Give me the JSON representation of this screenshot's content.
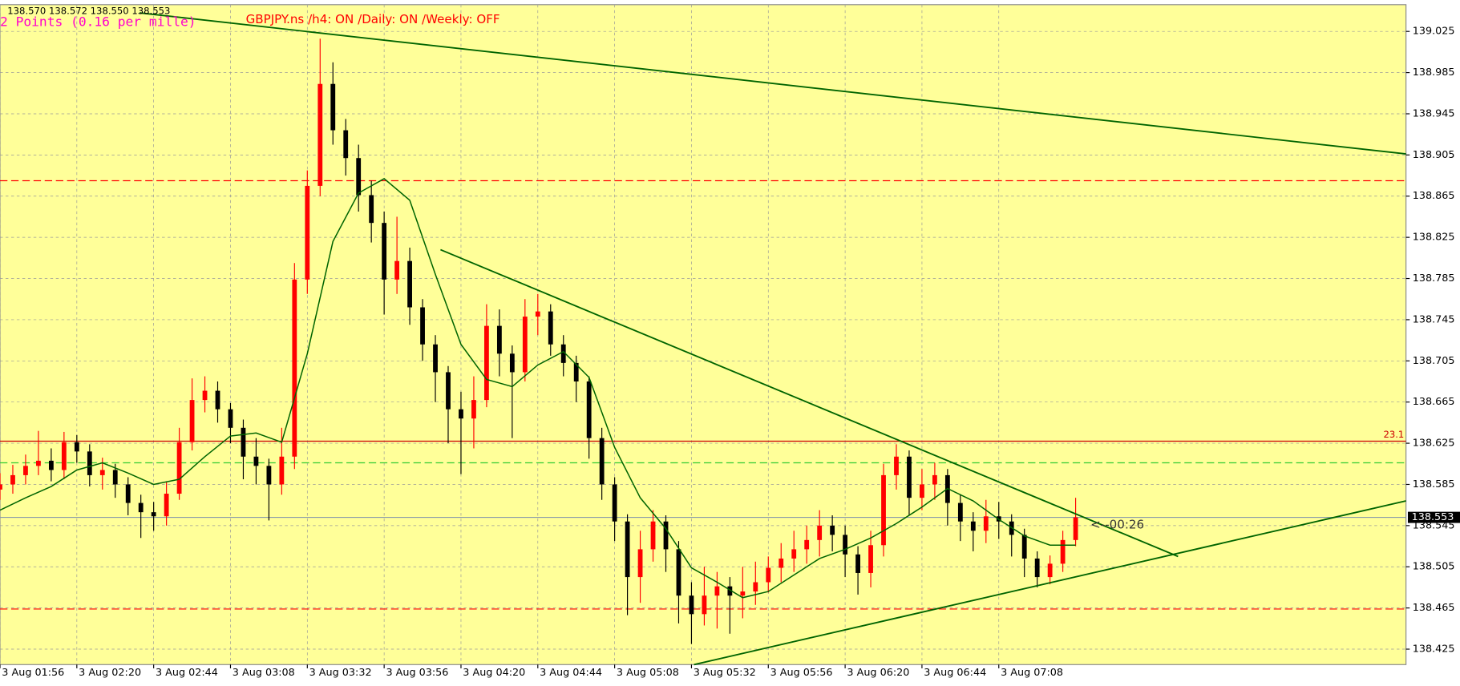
{
  "chart_data": {
    "type": "candlestick",
    "ohlc_label": "138.570 138.572 138.550 138.553",
    "info_label": "2 Points (0.16 per mille)",
    "title": "GBPJPY.ns /h4: ON /Daily: ON /Weekly: OFF",
    "countdown": "<--00:26",
    "background": "#ffff99",
    "up_color": "#ff0000",
    "down_color": "#000000",
    "grid": true,
    "xlim": [
      0,
      109.8
    ],
    "ylim": [
      138.41,
      139.051
    ],
    "yticks": [
      139.025,
      138.985,
      138.945,
      138.905,
      138.865,
      138.825,
      138.785,
      138.745,
      138.705,
      138.665,
      138.625,
      138.585,
      138.545,
      138.505,
      138.465,
      138.425
    ],
    "xticks": [
      {
        "value": 0,
        "label": "3 Aug 01:56"
      },
      {
        "value": 6,
        "label": "3 Aug 02:20"
      },
      {
        "value": 12,
        "label": "3 Aug 02:44"
      },
      {
        "value": 18,
        "label": "3 Aug 03:08"
      },
      {
        "value": 24,
        "label": "3 Aug 03:32"
      },
      {
        "value": 30,
        "label": "3 Aug 03:56"
      },
      {
        "value": 36,
        "label": "3 Aug 04:20"
      },
      {
        "value": 42,
        "label": "3 Aug 04:44"
      },
      {
        "value": 48,
        "label": "3 Aug 05:08"
      },
      {
        "value": 54,
        "label": "3 Aug 05:32"
      },
      {
        "value": 60,
        "label": "3 Aug 05:56"
      },
      {
        "value": 66,
        "label": "3 Aug 06:20"
      },
      {
        "value": 72,
        "label": "3 Aug 06:44"
      },
      {
        "value": 78,
        "label": "3 Aug 07:08"
      }
    ],
    "candles": [
      [
        138.58,
        138.596,
        138.57,
        138.585
      ],
      [
        138.585,
        138.604,
        138.576,
        138.594
      ],
      [
        138.594,
        138.614,
        138.585,
        138.603
      ],
      [
        138.603,
        138.637,
        138.594,
        138.608
      ],
      [
        138.608,
        138.62,
        138.588,
        138.599
      ],
      [
        138.599,
        138.636,
        138.59,
        138.626
      ],
      [
        138.626,
        138.633,
        138.606,
        138.617
      ],
      [
        138.617,
        138.624,
        138.583,
        138.594
      ],
      [
        138.594,
        138.611,
        138.58,
        138.599
      ],
      [
        138.599,
        138.605,
        138.572,
        138.585
      ],
      [
        138.585,
        138.592,
        138.555,
        138.567
      ],
      [
        138.567,
        138.575,
        138.533,
        138.558
      ],
      [
        138.558,
        138.568,
        138.54,
        138.554
      ],
      [
        138.554,
        138.588,
        138.545,
        138.576
      ],
      [
        138.576,
        138.64,
        138.57,
        138.626
      ],
      [
        138.626,
        138.688,
        138.618,
        138.667
      ],
      [
        138.667,
        138.69,
        138.655,
        138.676
      ],
      [
        138.676,
        138.685,
        138.645,
        138.658
      ],
      [
        138.658,
        138.664,
        138.625,
        138.64
      ],
      [
        138.64,
        138.648,
        138.59,
        138.612
      ],
      [
        138.612,
        138.63,
        138.585,
        138.603
      ],
      [
        138.603,
        138.61,
        138.55,
        138.585
      ],
      [
        138.585,
        138.64,
        138.575,
        138.612
      ],
      [
        138.612,
        138.8,
        138.6,
        138.784
      ],
      [
        138.784,
        138.89,
        138.77,
        138.875
      ],
      [
        138.875,
        139.018,
        138.865,
        138.974
      ],
      [
        138.974,
        138.995,
        138.915,
        138.929
      ],
      [
        138.929,
        138.94,
        138.885,
        138.902
      ],
      [
        138.902,
        138.915,
        138.85,
        138.866
      ],
      [
        138.866,
        138.88,
        138.82,
        138.839
      ],
      [
        138.839,
        138.85,
        138.75,
        138.784
      ],
      [
        138.784,
        138.845,
        138.77,
        138.802
      ],
      [
        138.802,
        138.815,
        138.74,
        138.757
      ],
      [
        138.757,
        138.765,
        138.705,
        138.721
      ],
      [
        138.721,
        138.73,
        138.665,
        138.694
      ],
      [
        138.694,
        138.7,
        138.625,
        138.658
      ],
      [
        138.658,
        138.675,
        138.595,
        138.649
      ],
      [
        138.649,
        138.69,
        138.62,
        138.667
      ],
      [
        138.667,
        138.76,
        138.66,
        138.739
      ],
      [
        138.739,
        138.755,
        138.69,
        138.712
      ],
      [
        138.712,
        138.72,
        138.63,
        138.694
      ],
      [
        138.694,
        138.765,
        138.685,
        138.748
      ],
      [
        138.748,
        138.77,
        138.73,
        138.753
      ],
      [
        138.753,
        138.76,
        138.71,
        138.721
      ],
      [
        138.721,
        138.73,
        138.69,
        138.703
      ],
      [
        138.703,
        138.71,
        138.665,
        138.685
      ],
      [
        138.685,
        138.69,
        138.61,
        138.63
      ],
      [
        138.63,
        138.64,
        138.57,
        138.585
      ],
      [
        138.585,
        138.592,
        138.53,
        138.549
      ],
      [
        138.549,
        138.556,
        138.458,
        138.495
      ],
      [
        138.495,
        138.54,
        138.47,
        138.522
      ],
      [
        138.522,
        138.56,
        138.51,
        138.549
      ],
      [
        138.549,
        138.555,
        138.5,
        138.522
      ],
      [
        138.522,
        138.53,
        138.45,
        138.477
      ],
      [
        138.477,
        138.49,
        138.43,
        138.459
      ],
      [
        138.459,
        138.505,
        138.448,
        138.477
      ],
      [
        138.477,
        138.5,
        138.445,
        138.486
      ],
      [
        138.486,
        138.495,
        138.44,
        138.477
      ],
      [
        138.477,
        138.505,
        138.455,
        138.481
      ],
      [
        138.481,
        138.51,
        138.468,
        138.49
      ],
      [
        138.49,
        138.515,
        138.48,
        138.504
      ],
      [
        138.504,
        138.528,
        138.49,
        138.513
      ],
      [
        138.513,
        138.54,
        138.5,
        138.522
      ],
      [
        138.522,
        138.545,
        138.508,
        138.531
      ],
      [
        138.531,
        138.56,
        138.515,
        138.545
      ],
      [
        138.545,
        138.555,
        138.52,
        138.536
      ],
      [
        138.536,
        138.545,
        138.495,
        138.517
      ],
      [
        138.517,
        138.525,
        138.478,
        138.499
      ],
      [
        138.499,
        138.54,
        138.485,
        138.526
      ],
      [
        138.526,
        138.605,
        138.515,
        138.594
      ],
      [
        138.594,
        138.624,
        138.58,
        138.612
      ],
      [
        138.612,
        138.618,
        138.555,
        138.572
      ],
      [
        138.572,
        138.6,
        138.56,
        138.585
      ],
      [
        138.585,
        138.606,
        138.57,
        138.594
      ],
      [
        138.594,
        138.6,
        138.545,
        138.567
      ],
      [
        138.567,
        138.575,
        138.53,
        138.549
      ],
      [
        138.549,
        138.558,
        138.52,
        138.54
      ],
      [
        138.54,
        138.57,
        138.528,
        138.554
      ],
      [
        138.554,
        138.568,
        138.532,
        138.549
      ],
      [
        138.549,
        138.556,
        138.515,
        138.536
      ],
      [
        138.536,
        138.542,
        138.495,
        138.513
      ],
      [
        138.513,
        138.52,
        138.485,
        138.495
      ],
      [
        138.495,
        138.516,
        138.488,
        138.508
      ],
      [
        138.508,
        138.54,
        138.5,
        138.531
      ],
      [
        138.531,
        138.572,
        138.525,
        138.553
      ]
    ],
    "moving_average": {
      "color": "#006400",
      "x": [
        0,
        2,
        4,
        6,
        8,
        10,
        12,
        14,
        16,
        18,
        20,
        22,
        24,
        26,
        28,
        30,
        32,
        34,
        36,
        38,
        40,
        42,
        44,
        46,
        48,
        50,
        52,
        54,
        56,
        58,
        60,
        62,
        64,
        66,
        68,
        70,
        72,
        74,
        76,
        78,
        80,
        82,
        84
      ],
      "values": [
        138.56,
        138.572,
        138.583,
        138.599,
        138.606,
        138.596,
        138.585,
        138.59,
        138.612,
        138.632,
        138.635,
        138.626,
        138.712,
        138.821,
        138.868,
        138.882,
        138.861,
        138.789,
        138.721,
        138.687,
        138.68,
        138.701,
        138.714,
        138.689,
        138.621,
        138.572,
        138.542,
        138.504,
        138.49,
        138.475,
        138.481,
        138.497,
        138.513,
        138.522,
        138.533,
        138.547,
        138.563,
        138.581,
        138.569,
        138.551,
        138.535,
        138.526,
        138.526
      ]
    },
    "trendlines": [
      {
        "color": "#006400",
        "x": [
          10.9,
          109.8
        ],
        "values": [
          139.043,
          138.906
        ]
      },
      {
        "color": "#006400",
        "x": [
          34.4,
          92
        ],
        "values": [
          138.813,
          138.515
        ]
      },
      {
        "color": "#006400",
        "x": [
          54.2,
          109.8
        ],
        "values": [
          138.41,
          138.569
        ]
      }
    ],
    "levels": [
      {
        "value": 138.627,
        "color": "#cc0000",
        "style": "solid",
        "label": "23.1"
      },
      {
        "value": 138.88,
        "color": "#ff0000",
        "style": "dashed"
      },
      {
        "value": 138.464,
        "color": "#ff0000",
        "style": "dashed"
      },
      {
        "value": 138.606,
        "color": "#33cc33",
        "style": "dashed"
      },
      {
        "value": 138.553,
        "color": "#8899aa",
        "style": "solid"
      }
    ]
  }
}
